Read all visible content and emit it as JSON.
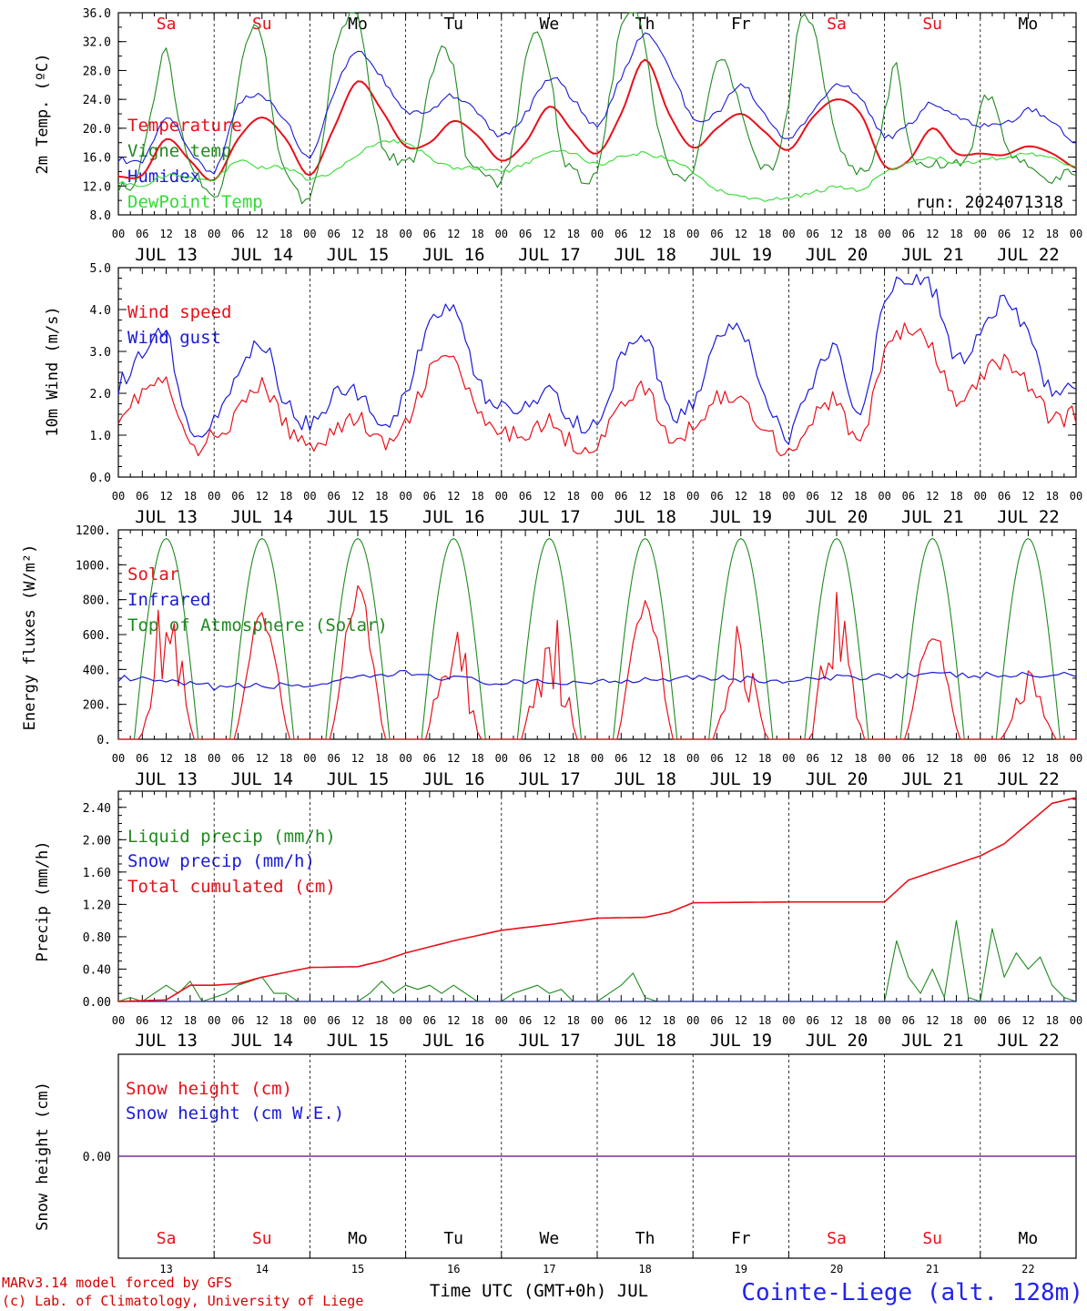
{
  "colors": {
    "red": "#e8101a",
    "green": "#1f8a1f",
    "blue": "#1a1ad8",
    "lightgreen": "#33dd33",
    "purple": "#7a2ea0"
  },
  "days": [
    "13",
    "14",
    "15",
    "16",
    "17",
    "18",
    "19",
    "20",
    "21",
    "22"
  ],
  "date_labels": [
    "JUL 13",
    "JUL 14",
    "JUL 15",
    "JUL 16",
    "JUL 17",
    "JUL 18",
    "JUL 19",
    "JUL 20",
    "JUL 21",
    "JUL 22"
  ],
  "hour_labels": [
    "00",
    "06",
    "12",
    "18"
  ],
  "day_names": [
    {
      "name": "Sa",
      "color": "#e8101a"
    },
    {
      "name": "Su",
      "color": "#e8101a"
    },
    {
      "name": "Mo",
      "color": "#000000"
    },
    {
      "name": "Tu",
      "color": "#000000"
    },
    {
      "name": "We",
      "color": "#000000"
    },
    {
      "name": "Th",
      "color": "#000000"
    },
    {
      "name": "Fr",
      "color": "#000000"
    },
    {
      "name": "Sa",
      "color": "#e8101a"
    },
    {
      "name": "Su",
      "color": "#e8101a"
    },
    {
      "name": "Mo",
      "color": "#000000"
    }
  ],
  "panel1": {
    "ylabel": "2m Temp. (ºC)",
    "run_label": "run: 2024071318",
    "legend": [
      {
        "text": "Temperature",
        "color": "#e8101a"
      },
      {
        "text": "Vigne temp",
        "color": "#1f8a1f"
      },
      {
        "text": "Humidex",
        "color": "#1a1ad8"
      },
      {
        "text": "DewPoint Temp",
        "color": "#33dd33"
      }
    ],
    "yticks": [
      "36.0",
      "32.0",
      "28.0",
      "24.0",
      "20.0",
      "16.0",
      "12.0",
      "8.0"
    ]
  },
  "panel2": {
    "ylabel": "10m Wind (m/s)",
    "legend": [
      {
        "text": "Wind speed",
        "color": "#e8101a"
      },
      {
        "text": "Wind gust",
        "color": "#1a1ad8"
      }
    ],
    "yticks": [
      "5.0",
      "4.0",
      "3.0",
      "2.0",
      "1.0",
      "0.0"
    ]
  },
  "panel3": {
    "ylabel": "Energy fluxes (W/m²)",
    "legend": [
      {
        "text": "Solar",
        "color": "#e8101a"
      },
      {
        "text": "Infrared",
        "color": "#1a1ad8"
      },
      {
        "text": "Top of Atmosphere (Solar)",
        "color": "#1f8a1f"
      }
    ],
    "yticks": [
      "1200.",
      "1000.",
      "800.",
      "600.",
      "400.",
      "200.",
      "0."
    ]
  },
  "panel4": {
    "ylabel": "Precip (mm/h)",
    "legend": [
      {
        "text": "Liquid precip (mm/h)",
        "color": "#1f8a1f"
      },
      {
        "text": "Snow precip (mm/h)",
        "color": "#1a1ad8"
      },
      {
        "text": "Total cumulated (cm)",
        "color": "#e8101a"
      }
    ],
    "yticks": [
      "2.40",
      "2.00",
      "1.60",
      "1.20",
      "0.80",
      "0.40",
      "0.00"
    ]
  },
  "panel5": {
    "ylabel": "Snow height (cm)",
    "legend": [
      {
        "text": "Snow height (cm)",
        "color": "#e8101a"
      },
      {
        "text": "Snow height (cm W.E.)",
        "color": "#1a1ad8"
      }
    ],
    "yticks": [
      "0.00"
    ]
  },
  "footer": {
    "model": "MARv3.14 model forced by GFS",
    "credit": "(c) Lab. of Climatology, University of Liege",
    "xtitle": "Time UTC (GMT+0h) JUL",
    "station": "Cointe-Liege (alt. 128m)"
  },
  "chart_data": [
    {
      "type": "line",
      "ylabel": "2m Temp. (ºC)",
      "ylim": [
        8,
        36
      ],
      "x_unit": "hours since JUL 13 00 UTC",
      "series": [
        {
          "name": "Temperature",
          "color": "#e8101a",
          "x": [
            0,
            6,
            12,
            18,
            24,
            30,
            36,
            42,
            48,
            54,
            60,
            66,
            72,
            78,
            84,
            90,
            96,
            102,
            108,
            114,
            120,
            126,
            132,
            138,
            144,
            150,
            156,
            162,
            168,
            174,
            180,
            186,
            192,
            198,
            204,
            210,
            216,
            222,
            228,
            234,
            240
          ],
          "y": [
            13.3,
            13.5,
            18.5,
            15.5,
            12.8,
            18.5,
            21.5,
            18.5,
            13.5,
            20,
            26.5,
            22.5,
            17.5,
            18,
            21,
            19,
            15.5,
            18,
            23,
            19.5,
            16.5,
            22,
            29.5,
            22,
            17.3,
            20,
            22,
            19.5,
            17,
            21.5,
            24,
            22,
            14.8,
            15.5,
            20,
            16.5,
            16.5,
            16.3,
            17.5,
            16.5,
            14.5
          ]
        },
        {
          "name": "Vigne temp",
          "color": "#1f8a1f",
          "x": [
            0,
            3,
            6,
            9,
            12,
            15,
            18,
            21,
            24,
            27,
            30,
            33,
            36,
            39,
            42,
            45,
            48,
            51,
            54,
            57,
            60,
            63,
            66,
            69,
            72,
            75,
            78,
            81,
            84,
            87,
            90,
            93,
            96,
            99,
            102,
            105,
            108,
            111,
            114,
            117,
            120,
            123,
            126,
            129,
            132,
            135,
            138,
            141,
            144,
            147,
            150,
            153,
            156,
            159,
            162,
            165,
            168,
            171,
            174,
            177,
            180,
            183,
            186,
            189,
            192,
            195,
            198,
            201,
            204,
            207,
            210,
            213,
            216,
            219,
            222,
            225,
            228,
            231,
            234,
            237,
            240
          ],
          "y": [
            12,
            11.5,
            16,
            24,
            31,
            22,
            15,
            12.5,
            11,
            14,
            26,
            32.5,
            33,
            20,
            14,
            11,
            10.5,
            18,
            30,
            35,
            36,
            26,
            18,
            16,
            15.5,
            17,
            26,
            31,
            28,
            16,
            14,
            13.5,
            12.5,
            18,
            29,
            33,
            28,
            17,
            14,
            13,
            14,
            24,
            34,
            37,
            31,
            20,
            15,
            13.5,
            14,
            22,
            29,
            28,
            22,
            17,
            14.5,
            16,
            24,
            35,
            34,
            26,
            19,
            15,
            14,
            15,
            22,
            29,
            18,
            15,
            15,
            14.5,
            15,
            16,
            23,
            24,
            18,
            16,
            14.5,
            13,
            13,
            13.5,
            13.5
          ]
        },
        {
          "name": "Humidex",
          "color": "#1a1ad8",
          "x": [
            0,
            6,
            12,
            18,
            24,
            30,
            36,
            42,
            48,
            54,
            60,
            66,
            72,
            78,
            84,
            90,
            96,
            102,
            108,
            114,
            120,
            126,
            132,
            138,
            144,
            150,
            156,
            162,
            168,
            174,
            180,
            186,
            192,
            198,
            204,
            210,
            216,
            222,
            228,
            234,
            240
          ],
          "y": [
            15.8,
            15.5,
            21.5,
            17,
            14,
            23,
            24.5,
            21,
            16,
            25,
            30.5,
            27,
            22.5,
            22.5,
            24.5,
            22,
            19,
            22,
            27,
            24,
            20.5,
            27,
            33,
            28.5,
            21.5,
            22,
            26,
            22,
            18.5,
            22.5,
            26,
            24,
            19,
            20.5,
            23.5,
            21.5,
            20.5,
            20.5,
            22.5,
            21,
            18
          ]
        },
        {
          "name": "DewPoint Temp",
          "color": "#33dd33",
          "x": [
            0,
            6,
            12,
            18,
            24,
            30,
            36,
            42,
            48,
            54,
            60,
            66,
            72,
            78,
            84,
            90,
            96,
            102,
            108,
            114,
            120,
            126,
            132,
            138,
            144,
            150,
            156,
            162,
            168,
            174,
            180,
            186,
            192,
            198,
            204,
            210,
            216,
            222,
            228,
            234,
            240
          ],
          "y": [
            12.5,
            12,
            13.5,
            13,
            13,
            15.5,
            14.5,
            14.5,
            13,
            14,
            16.5,
            18,
            18,
            16,
            14.5,
            14.5,
            14,
            15,
            16.5,
            16.5,
            15,
            16,
            16.5,
            15.5,
            14,
            11.5,
            10.5,
            10,
            10.5,
            11,
            12,
            11.5,
            14,
            15,
            16,
            15,
            15.5,
            16,
            16.5,
            16,
            14.5
          ]
        }
      ]
    },
    {
      "type": "line",
      "ylabel": "10m Wind (m/s)",
      "ylim": [
        0,
        5
      ],
      "x_unit": "hours since JUL 13 00 UTC",
      "series": [
        {
          "name": "Wind speed",
          "color": "#e8101a",
          "x": [
            0,
            6,
            12,
            18,
            24,
            30,
            36,
            42,
            48,
            54,
            60,
            66,
            72,
            78,
            84,
            90,
            96,
            102,
            108,
            114,
            120,
            126,
            132,
            138,
            144,
            150,
            156,
            162,
            168,
            174,
            180,
            186,
            192,
            198,
            204,
            210,
            216,
            222,
            228,
            234,
            240
          ],
          "y": [
            1.5,
            2.0,
            2.2,
            0.7,
            1.0,
            1.5,
            2.2,
            1.2,
            0.8,
            1.1,
            1.4,
            0.8,
            1.2,
            2.5,
            2.8,
            1.5,
            1.0,
            1.1,
            1.3,
            0.8,
            0.8,
            1.7,
            2.1,
            0.9,
            1.2,
            1.9,
            1.8,
            1.2,
            0.6,
            1.4,
            1.8,
            0.8,
            3.0,
            3.5,
            3.0,
            1.8,
            2.3,
            2.8,
            2.2,
            1.4,
            1.5
          ]
        },
        {
          "name": "Wind gust",
          "color": "#1a1ad8",
          "x": [
            0,
            6,
            12,
            18,
            24,
            30,
            36,
            42,
            48,
            54,
            60,
            66,
            72,
            78,
            84,
            90,
            96,
            102,
            108,
            114,
            120,
            126,
            132,
            138,
            144,
            150,
            156,
            162,
            168,
            174,
            180,
            186,
            192,
            198,
            204,
            210,
            216,
            222,
            228,
            234,
            240
          ],
          "y": [
            2.2,
            2.9,
            3.4,
            1.0,
            1.5,
            2.3,
            3.2,
            1.8,
            1.3,
            1.9,
            2.0,
            1.3,
            2.0,
            3.6,
            3.9,
            2.3,
            1.6,
            1.7,
            2.0,
            1.3,
            1.3,
            2.8,
            3.4,
            1.5,
            1.8,
            3.2,
            3.5,
            2.0,
            1.0,
            2.3,
            3.0,
            1.5,
            4.2,
            4.8,
            4.5,
            2.8,
            3.5,
            4.2,
            3.4,
            2.0,
            2.1
          ]
        }
      ]
    },
    {
      "type": "line",
      "ylabel": "Energy fluxes (W/m²)",
      "ylim": [
        0,
        1200
      ],
      "x_unit": "hours since JUL 13 00 UTC",
      "series": [
        {
          "name": "Solar",
          "color": "#e8101a",
          "peaks": [
            800,
            700,
            850,
            680,
            760,
            840,
            640,
            850,
            630,
            380
          ]
        },
        {
          "name": "Infrared",
          "color": "#1a1ad8",
          "daily": [
            350,
            300,
            310,
            380,
            320,
            330,
            360,
            330,
            370,
            365
          ]
        },
        {
          "name": "Top of Atmosphere (Solar)",
          "color": "#1f8a1f",
          "peak": 1150,
          "sunrise_h": 4,
          "sunset_h": 20
        }
      ]
    },
    {
      "type": "line",
      "ylabel": "Precip (mm/h)",
      "ylim": [
        0,
        2.6
      ],
      "x_unit": "hours since JUL 13 00 UTC",
      "series": [
        {
          "name": "Liquid precip (mm/h)",
          "color": "#1f8a1f",
          "x": [
            0,
            3,
            6,
            9,
            12,
            15,
            18,
            21,
            24,
            27,
            30,
            33,
            36,
            39,
            42,
            45,
            48,
            51,
            54,
            57,
            60,
            63,
            66,
            69,
            72,
            75,
            78,
            81,
            84,
            87,
            90,
            93,
            96,
            99,
            102,
            105,
            108,
            111,
            114,
            117,
            120,
            123,
            126,
            129,
            132,
            135,
            138,
            141,
            144,
            150,
            156,
            162,
            168,
            174,
            180,
            186,
            192,
            195,
            198,
            201,
            204,
            207,
            210,
            213,
            216,
            219,
            222,
            225,
            228,
            231,
            234,
            237,
            240
          ],
          "y": [
            0,
            0.05,
            0,
            0.1,
            0.2,
            0.1,
            0.25,
            0,
            0.05,
            0.1,
            0.2,
            0.25,
            0.3,
            0.1,
            0.1,
            0,
            0,
            0,
            0,
            0,
            0,
            0.1,
            0.25,
            0.1,
            0.2,
            0.15,
            0.2,
            0.1,
            0.2,
            0.1,
            0,
            0,
            0,
            0.1,
            0.15,
            0.2,
            0.1,
            0.15,
            0,
            0,
            0,
            0.1,
            0.2,
            0.35,
            0.05,
            0,
            0,
            0,
            0,
            0,
            0,
            0,
            0,
            0,
            0,
            0,
            0,
            0.75,
            0.3,
            0.1,
            0.4,
            0.05,
            1.0,
            0.05,
            0,
            0.9,
            0.3,
            0.6,
            0.4,
            0.55,
            0.2,
            0.05,
            0
          ]
        },
        {
          "name": "Snow precip (mm/h)",
          "color": "#1a1ad8",
          "x": [
            0,
            240
          ],
          "y": [
            0,
            0
          ]
        },
        {
          "name": "Total cumulated (cm)",
          "color": "#e8101a",
          "x": [
            0,
            12,
            18,
            24,
            30,
            36,
            48,
            60,
            66,
            72,
            84,
            96,
            108,
            120,
            132,
            138,
            144,
            168,
            192,
            198,
            204,
            216,
            222,
            228,
            234,
            240
          ],
          "y": [
            0,
            0.02,
            0.2,
            0.2,
            0.22,
            0.3,
            0.42,
            0.43,
            0.5,
            0.6,
            0.75,
            0.88,
            0.95,
            1.03,
            1.04,
            1.1,
            1.22,
            1.23,
            1.23,
            1.5,
            1.6,
            1.8,
            1.95,
            2.2,
            2.45,
            2.52
          ]
        }
      ]
    },
    {
      "type": "line",
      "ylabel": "Snow height (cm)",
      "x_unit": "hours since JUL 13 00 UTC",
      "series": [
        {
          "name": "Snow height (cm)",
          "color": "#e8101a",
          "x": [
            0,
            240
          ],
          "y": [
            0,
            0
          ]
        },
        {
          "name": "Snow height (cm W.E.)",
          "color": "#1a1ad8",
          "x": [
            0,
            240
          ],
          "y": [
            0,
            0
          ]
        }
      ]
    }
  ]
}
